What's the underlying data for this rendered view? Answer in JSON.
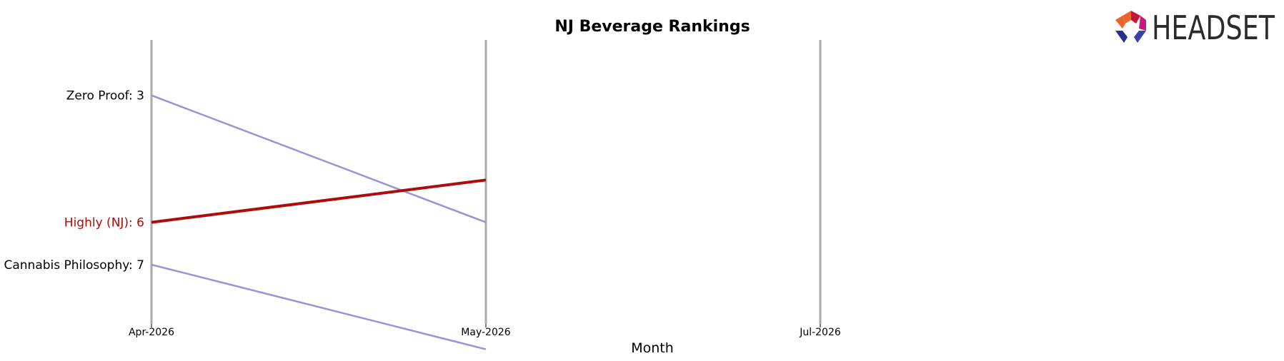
{
  "chart_data": {
    "type": "line",
    "title": "NJ Beverage Rankings",
    "xlabel": "Month",
    "ylabel": "",
    "categories": [
      "Apr-2026",
      "May-2026",
      "Jul-2026"
    ],
    "y_axis": {
      "inverted": true,
      "range": [
        2,
        9
      ],
      "grid": false
    },
    "series": [
      {
        "name": "Zero Proof",
        "values": [
          3,
          6,
          null
        ],
        "start_label": "Zero Proof: 3",
        "color": "#9b91d8",
        "highlight": false
      },
      {
        "name": "Highly (NJ)",
        "values": [
          6,
          5,
          null
        ],
        "start_label": "Highly (NJ): 6",
        "color": "#b00b0b",
        "highlight": true
      },
      {
        "name": "Cannabis Philosophy",
        "values": [
          7,
          9,
          null
        ],
        "start_label": "Cannabis Philosophy: 7",
        "color": "#9b91d8",
        "highlight": false
      }
    ],
    "label_colors": {
      "default": "#000000",
      "highlight": "#b00b0b"
    },
    "axis_line_color": "#aaaaaa",
    "legend": "none"
  },
  "logo": {
    "text": "HEADSET",
    "colors": [
      "#e8662b",
      "#c8143c",
      "#a0164f",
      "#c41b82",
      "#2a2f8f",
      "#3b3fa8"
    ]
  }
}
